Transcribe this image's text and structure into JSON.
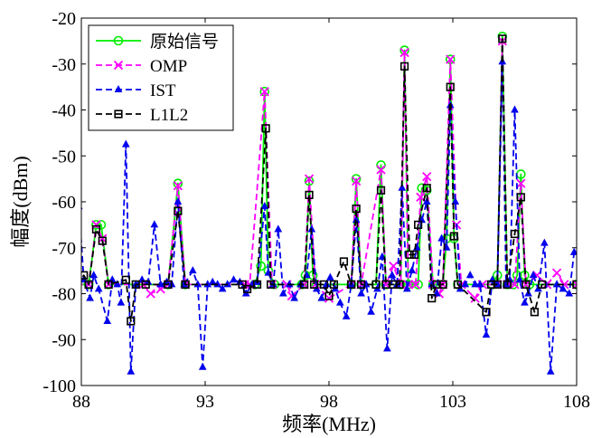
{
  "chart_data": {
    "type": "line",
    "title": "",
    "xlabel": "频率(MHz)",
    "ylabel": "幅度(dBm)",
    "xlim": [
      88,
      108
    ],
    "ylim": [
      -100,
      -20
    ],
    "xticks": [
      88,
      93,
      98,
      103,
      108
    ],
    "yticks": [
      -100,
      -90,
      -80,
      -70,
      -60,
      -50,
      -40,
      -30,
      -20
    ],
    "grid": false,
    "legend_position": "top-left",
    "series": [
      {
        "name": "原始信号",
        "color": "#00ee00",
        "marker": "circle",
        "dash": "solid",
        "points": [
          [
            87.8,
            -78
          ],
          [
            88.3,
            -78
          ],
          [
            88.6,
            -65
          ],
          [
            88.8,
            -65
          ],
          [
            89.1,
            -78
          ],
          [
            91.5,
            -78
          ],
          [
            91.9,
            -56
          ],
          [
            92.2,
            -78
          ],
          [
            95.0,
            -78
          ],
          [
            95.25,
            -74
          ],
          [
            95.4,
            -36
          ],
          [
            95.55,
            -75
          ],
          [
            95.8,
            -78
          ],
          [
            96.9,
            -78
          ],
          [
            97.05,
            -76
          ],
          [
            97.2,
            -55.5
          ],
          [
            97.35,
            -76
          ],
          [
            97.5,
            -78
          ],
          [
            98.9,
            -78
          ],
          [
            99.1,
            -55
          ],
          [
            99.3,
            -78
          ],
          [
            99.9,
            -78
          ],
          [
            100.1,
            -52
          ],
          [
            100.3,
            -78
          ],
          [
            100.9,
            -78
          ],
          [
            101.05,
            -27
          ],
          [
            101.2,
            -78
          ],
          [
            101.6,
            -78
          ],
          [
            101.75,
            -57
          ],
          [
            101.95,
            -57.5
          ],
          [
            102.2,
            -78
          ],
          [
            102.6,
            -78
          ],
          [
            102.75,
            -68
          ],
          [
            102.9,
            -29
          ],
          [
            103.05,
            -68
          ],
          [
            103.2,
            -78
          ],
          [
            104.6,
            -78
          ],
          [
            104.8,
            -76
          ],
          [
            105.0,
            -24
          ],
          [
            105.2,
            -78
          ],
          [
            105.45,
            -78
          ],
          [
            105.6,
            -76
          ],
          [
            105.75,
            -54
          ],
          [
            105.9,
            -76
          ],
          [
            106.1,
            -78
          ],
          [
            108.0,
            -78
          ]
        ]
      },
      {
        "name": "OMP",
        "color": "#ff00ff",
        "marker": "x",
        "dash": "dashed",
        "points": [
          [
            87.8,
            -78
          ],
          [
            88.3,
            -78
          ],
          [
            88.6,
            -65
          ],
          [
            88.85,
            -68
          ],
          [
            89.1,
            -78
          ],
          [
            90.5,
            -78
          ],
          [
            90.8,
            -80
          ],
          [
            91.2,
            -79
          ],
          [
            91.5,
            -78
          ],
          [
            91.9,
            -56.5
          ],
          [
            92.2,
            -78
          ],
          [
            94.6,
            -78
          ],
          [
            94.8,
            -78
          ],
          [
            95.4,
            -36
          ],
          [
            95.7,
            -78
          ],
          [
            96.3,
            -78
          ],
          [
            96.5,
            -80.5
          ],
          [
            97.0,
            -78
          ],
          [
            97.2,
            -55
          ],
          [
            97.45,
            -78
          ],
          [
            98.0,
            -81
          ],
          [
            98.9,
            -78
          ],
          [
            99.1,
            -55.5
          ],
          [
            99.3,
            -78
          ],
          [
            100.1,
            -53
          ],
          [
            100.3,
            -78
          ],
          [
            100.6,
            -74
          ],
          [
            100.9,
            -78
          ],
          [
            101.05,
            -27.5
          ],
          [
            101.2,
            -78
          ],
          [
            101.5,
            -78
          ],
          [
            101.7,
            -59
          ],
          [
            101.95,
            -54.5
          ],
          [
            102.2,
            -78
          ],
          [
            102.45,
            -80
          ],
          [
            102.6,
            -78
          ],
          [
            102.9,
            -29
          ],
          [
            103.15,
            -65
          ],
          [
            103.35,
            -78
          ],
          [
            103.9,
            -81
          ],
          [
            104.2,
            -78
          ],
          [
            104.8,
            -78
          ],
          [
            105.0,
            -25
          ],
          [
            105.2,
            -78
          ],
          [
            105.5,
            -78
          ],
          [
            105.75,
            -56
          ],
          [
            105.95,
            -78
          ],
          [
            106.4,
            -76
          ],
          [
            106.8,
            -78
          ],
          [
            107.2,
            -75.5
          ],
          [
            107.5,
            -78
          ],
          [
            108.0,
            -78
          ]
        ]
      },
      {
        "name": "IST",
        "color": "#0000ee",
        "marker": "triangle",
        "dash": "dashed",
        "points": [
          [
            87.9,
            -61
          ],
          [
            88.1,
            -77
          ],
          [
            88.35,
            -81
          ],
          [
            88.5,
            -76
          ],
          [
            88.7,
            -79
          ],
          [
            89.05,
            -86
          ],
          [
            89.25,
            -77
          ],
          [
            89.45,
            -78
          ],
          [
            89.6,
            -82
          ],
          [
            89.8,
            -47.5
          ],
          [
            90.0,
            -97
          ],
          [
            90.2,
            -78
          ],
          [
            90.45,
            -77
          ],
          [
            90.7,
            -77.5
          ],
          [
            90.95,
            -65
          ],
          [
            91.2,
            -78
          ],
          [
            91.45,
            -77.5
          ],
          [
            91.65,
            -78
          ],
          [
            91.9,
            -60
          ],
          [
            92.15,
            -78
          ],
          [
            92.5,
            -75
          ],
          [
            92.7,
            -78
          ],
          [
            92.9,
            -96
          ],
          [
            93.1,
            -78
          ],
          [
            93.3,
            -77.5
          ],
          [
            93.5,
            -78
          ],
          [
            93.7,
            -79
          ],
          [
            93.9,
            -78
          ],
          [
            94.15,
            -77
          ],
          [
            94.4,
            -77.5
          ],
          [
            94.65,
            -80
          ],
          [
            94.9,
            -78
          ],
          [
            95.1,
            -77.5
          ],
          [
            95.4,
            -61
          ],
          [
            95.55,
            -75.5
          ],
          [
            95.75,
            -78
          ],
          [
            95.95,
            -66
          ],
          [
            96.15,
            -80
          ],
          [
            96.4,
            -78
          ],
          [
            96.6,
            -81
          ],
          [
            96.85,
            -78
          ],
          [
            97.1,
            -76
          ],
          [
            97.3,
            -66
          ],
          [
            97.5,
            -79
          ],
          [
            97.7,
            -81
          ],
          [
            97.9,
            -78
          ],
          [
            98.05,
            -76.5
          ],
          [
            98.25,
            -79
          ],
          [
            98.45,
            -82
          ],
          [
            98.7,
            -85
          ],
          [
            98.9,
            -78
          ],
          [
            99.1,
            -64
          ],
          [
            99.3,
            -80
          ],
          [
            99.5,
            -78
          ],
          [
            99.7,
            -84
          ],
          [
            99.95,
            -79
          ],
          [
            100.15,
            -72
          ],
          [
            100.35,
            -92
          ],
          [
            100.55,
            -76
          ],
          [
            100.75,
            -78
          ],
          [
            100.95,
            -57
          ],
          [
            101.15,
            -79
          ],
          [
            101.35,
            -75
          ],
          [
            101.55,
            -70
          ],
          [
            101.75,
            -64
          ],
          [
            101.95,
            -60
          ],
          [
            102.15,
            -78
          ],
          [
            102.35,
            -80
          ],
          [
            102.55,
            -68
          ],
          [
            102.75,
            -70
          ],
          [
            102.9,
            -39
          ],
          [
            103.1,
            -60
          ],
          [
            103.3,
            -79
          ],
          [
            103.5,
            -78
          ],
          [
            103.7,
            -76
          ],
          [
            103.9,
            -78
          ],
          [
            104.1,
            -78
          ],
          [
            104.35,
            -89
          ],
          [
            104.6,
            -77
          ],
          [
            104.8,
            -78
          ],
          [
            105.0,
            -29.5
          ],
          [
            105.15,
            -78
          ],
          [
            105.3,
            -77
          ],
          [
            105.5,
            -40
          ],
          [
            105.7,
            -77
          ],
          [
            105.9,
            -82
          ],
          [
            106.05,
            -80
          ],
          [
            106.25,
            -76
          ],
          [
            106.45,
            -79
          ],
          [
            106.7,
            -69
          ],
          [
            106.95,
            -97
          ],
          [
            107.2,
            -78
          ],
          [
            107.45,
            -79
          ],
          [
            107.7,
            -80
          ],
          [
            107.9,
            -71
          ]
        ]
      },
      {
        "name": "L1L2",
        "color": "#000000",
        "marker": "square",
        "dash": "dashed",
        "points": [
          [
            87.8,
            -78
          ],
          [
            88.1,
            -76
          ],
          [
            88.3,
            -78
          ],
          [
            88.6,
            -66
          ],
          [
            88.85,
            -68.5
          ],
          [
            89.1,
            -78
          ],
          [
            89.8,
            -77
          ],
          [
            90.0,
            -86
          ],
          [
            90.2,
            -78
          ],
          [
            90.6,
            -78
          ],
          [
            91.5,
            -78
          ],
          [
            91.9,
            -62
          ],
          [
            92.2,
            -78
          ],
          [
            94.5,
            -78
          ],
          [
            94.7,
            -79
          ],
          [
            95.1,
            -78
          ],
          [
            95.45,
            -44
          ],
          [
            95.65,
            -78
          ],
          [
            97.0,
            -78
          ],
          [
            97.2,
            -58.5
          ],
          [
            97.4,
            -78
          ],
          [
            97.8,
            -78
          ],
          [
            98.0,
            -80.5
          ],
          [
            98.2,
            -78
          ],
          [
            98.6,
            -73
          ],
          [
            98.9,
            -78
          ],
          [
            99.1,
            -61.5
          ],
          [
            99.3,
            -78
          ],
          [
            99.9,
            -78
          ],
          [
            100.1,
            -57.5
          ],
          [
            100.3,
            -78
          ],
          [
            100.6,
            -78
          ],
          [
            100.85,
            -78
          ],
          [
            101.05,
            -30.5
          ],
          [
            101.25,
            -71.5
          ],
          [
            101.45,
            -71.5
          ],
          [
            101.6,
            -65
          ],
          [
            101.95,
            -57
          ],
          [
            102.15,
            -81
          ],
          [
            102.35,
            -78
          ],
          [
            102.6,
            -78
          ],
          [
            102.9,
            -35
          ],
          [
            103.05,
            -67.5
          ],
          [
            103.2,
            -78
          ],
          [
            104.35,
            -84
          ],
          [
            104.55,
            -78
          ],
          [
            104.8,
            -78
          ],
          [
            105.0,
            -24.5
          ],
          [
            105.2,
            -78
          ],
          [
            105.5,
            -67
          ],
          [
            105.75,
            -59
          ],
          [
            105.95,
            -78
          ],
          [
            106.3,
            -84
          ],
          [
            106.6,
            -78
          ],
          [
            108.0,
            -78
          ]
        ]
      }
    ]
  }
}
